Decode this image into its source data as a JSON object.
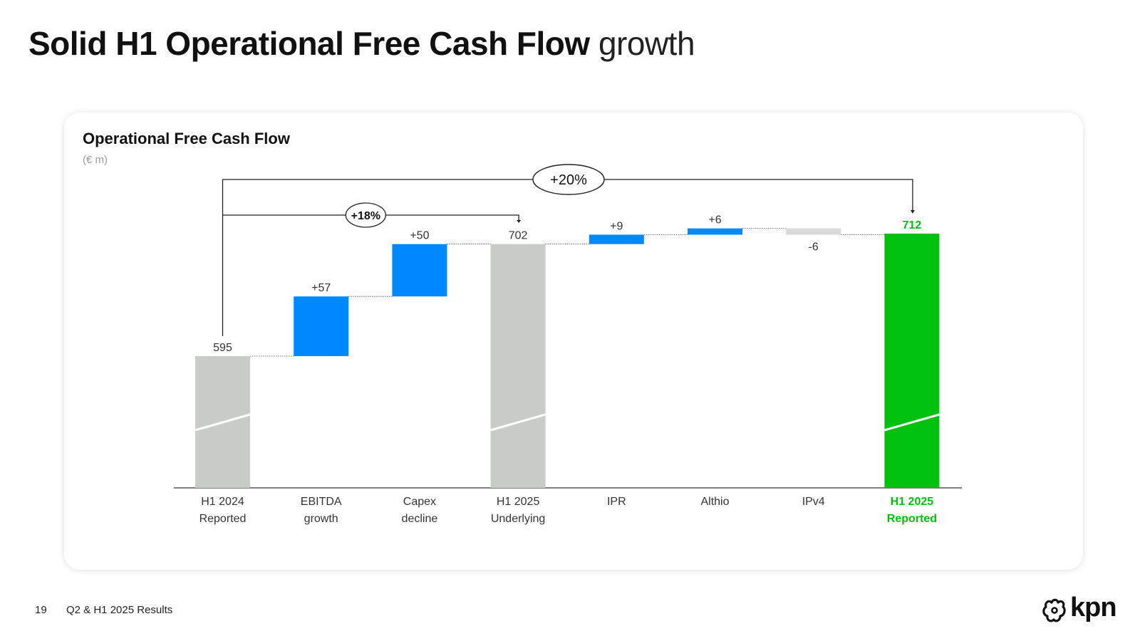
{
  "page": {
    "title_bold": "Solid H1 Operational Free Cash Flow",
    "title_light": "growth"
  },
  "footer": {
    "page_number": "19",
    "text": "Q2 & H1 2025 Results",
    "logo_text": "kpn",
    "logo_icon": "kpn-crown-icon"
  },
  "colors": {
    "total": "#c8ccc6",
    "increase": "#0088ff",
    "decrease": "#d9d9d9",
    "highlight": "#00c20e"
  },
  "chart_data": {
    "type": "waterfall",
    "title": "Operational Free Cash Flow",
    "unit": "(€ m)",
    "bars": [
      {
        "label_line1": "H1 2024",
        "label_line2": "Reported",
        "kind": "total",
        "value": 595,
        "display": "595"
      },
      {
        "label_line1": "EBITDA",
        "label_line2": "growth",
        "kind": "increase",
        "value": 57,
        "display": "+57"
      },
      {
        "label_line1": "Capex",
        "label_line2": "decline",
        "kind": "increase",
        "value": 50,
        "display": "+50"
      },
      {
        "label_line1": "H1 2025",
        "label_line2": "Underlying",
        "kind": "total",
        "value": 702,
        "display": "702"
      },
      {
        "label_line1": "IPR",
        "label_line2": "",
        "kind": "increase",
        "value": 9,
        "display": "+9"
      },
      {
        "label_line1": "Althio",
        "label_line2": "",
        "kind": "increase",
        "value": 6,
        "display": "+6"
      },
      {
        "label_line1": "IPv4",
        "label_line2": "",
        "kind": "decrease",
        "value": -6,
        "display": "-6"
      },
      {
        "label_line1": "H1 2025",
        "label_line2": "Reported",
        "kind": "highlight",
        "value": 712,
        "display": "712"
      }
    ],
    "axis_break": true,
    "annotations": [
      {
        "text": "+18%",
        "from_bar": 0,
        "to_bar": 3
      },
      {
        "text": "+20%",
        "from_bar": 0,
        "to_bar": 7
      }
    ]
  }
}
